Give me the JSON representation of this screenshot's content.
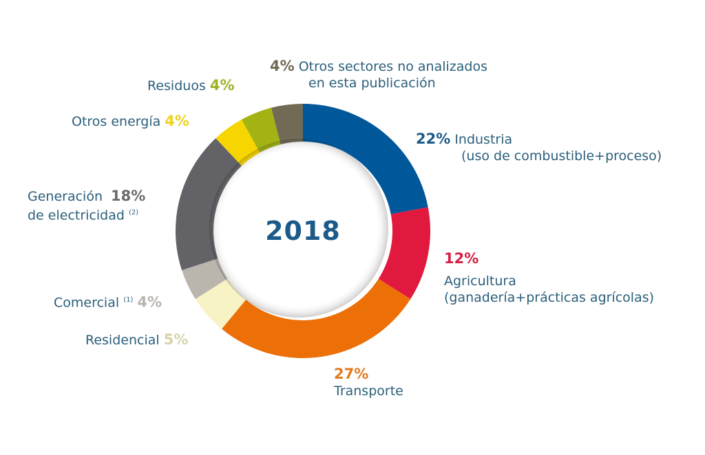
{
  "chart_data": {
    "type": "pie",
    "variant": "donut",
    "title": "2018",
    "unit": "%",
    "start": "top",
    "direction": "clockwise",
    "slices": [
      {
        "key": "industria",
        "label_line1": "Industria",
        "label_line2": "(uso de combustible+proceso)",
        "value": 22,
        "display": "22%",
        "color": "#00589b"
      },
      {
        "key": "agricultura",
        "label_line1": "Agricultura",
        "label_line2": "(ganadería+prácticas agrícolas)",
        "value": 12,
        "display": "12%",
        "color": "#e2193e"
      },
      {
        "key": "transporte",
        "label_line1": "Transporte",
        "label_line2": "",
        "value": 27,
        "display": "27%",
        "color": "#ec6f07"
      },
      {
        "key": "residencial",
        "label_line1": "Residencial",
        "label_line2": "",
        "value": 5,
        "display": "5%",
        "color": "#f8f3c4"
      },
      {
        "key": "comercial",
        "label_line1": "Comercial",
        "footnote": "(1)",
        "label_line2": "",
        "value": 4,
        "display": "4%",
        "color": "#bbb6ad"
      },
      {
        "key": "generacion",
        "label_line1": "Generación",
        "label_line2": "de electricidad",
        "footnote": "(2)",
        "value": 18,
        "display": "18%",
        "color": "#636266"
      },
      {
        "key": "otros_energia",
        "label_line1": "Otros energía",
        "label_line2": "",
        "value": 4,
        "display": "4%",
        "color": "#f7d500"
      },
      {
        "key": "residuos",
        "label_line1": "Residuos",
        "label_line2": "",
        "value": 4,
        "display": "4%",
        "color": "#a3b313"
      },
      {
        "key": "otros_sectores",
        "label_line1": "Otros sectores no analizados",
        "label_line2": "en esta publicación",
        "value": 4,
        "display": "4%",
        "color": "#716a55"
      }
    ],
    "pct_text_colors": {
      "industria": "#1c5a8a",
      "agricultura": "#d61f45",
      "transporte": "#e37a1f",
      "residencial": "#d8d2a8",
      "comercial": "#b8b5b0",
      "generacion": "#6a696c",
      "otros_energia": "#eed21f",
      "residuos": "#9fb023",
      "otros_sectores": "#6f6852"
    },
    "label_color": "#2b5f7a",
    "center_color": "#1c5a8a"
  }
}
